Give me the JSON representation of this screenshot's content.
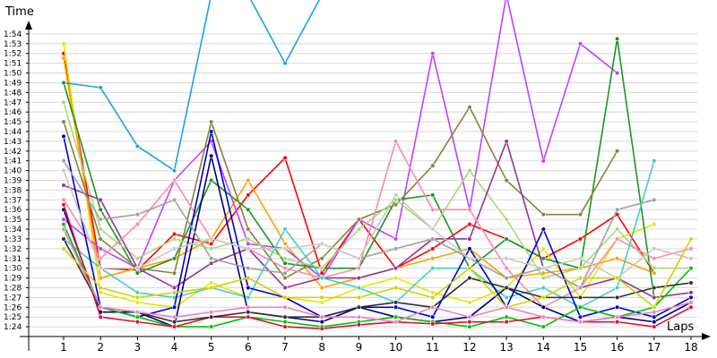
{
  "chart_data": {
    "type": "line",
    "title": "",
    "xlabel": "Laps",
    "ylabel": "Time",
    "x": [
      1,
      2,
      3,
      4,
      5,
      6,
      7,
      8,
      9,
      10,
      11,
      12,
      13,
      14,
      15,
      16,
      17,
      18
    ],
    "ylim": [
      "1:23",
      "1:55"
    ],
    "y_ticks": [
      "1:24",
      "1:25",
      "1:26",
      "1:27",
      "1:28",
      "1:29",
      "1:30",
      "1:31",
      "1:32",
      "1:33",
      "1:34",
      "1:35",
      "1:36",
      "1:37",
      "1:38",
      "1:39",
      "1:40",
      "1:41",
      "1:42",
      "1:43",
      "1:44",
      "1:45",
      "1:46",
      "1:47",
      "1:48",
      "1:49",
      "1:50",
      "1:51",
      "1:52",
      "1:53",
      "1:54"
    ],
    "grid": true,
    "legend": "none",
    "series": [
      {
        "color": "#ff0000",
        "values": [
          "1:52",
          "1:30",
          "1:29.8",
          "1:33.5",
          "1:32.5",
          "1:37.5",
          "1:41.3",
          "1:29.5",
          "1:35",
          "1:30",
          "1:32",
          "1:34.5",
          "1:33",
          "1:31",
          "1:33",
          "1:35.5",
          "1:29.5",
          null
        ]
      },
      {
        "color": "#e6e600",
        "values": [
          "1:53",
          "1:27.5",
          "1:26.5",
          "1:26",
          "1:28.5",
          "1:27",
          "1:27",
          "1:26.5",
          "1:28",
          "1:29",
          "1:27.5",
          "1:26.5",
          "1:28",
          "1:32",
          "1:27",
          "1:33",
          "1:34.5",
          null
        ]
      },
      {
        "color": "#ffa000",
        "values": [
          "1:51.5",
          "1:29",
          "1:30",
          "1:31",
          "1:33",
          "1:39",
          "1:32.5",
          "1:28",
          "1:29",
          "1:30",
          "1:31",
          "1:32",
          "1:29",
          "1:29.5",
          "1:30",
          "1:31",
          "1:29.5",
          null
        ]
      },
      {
        "color": "#1ea0e6",
        "values": [
          "1:49",
          "1:48.5",
          "1:42.5",
          "1:40",
          "1:58",
          "1:58",
          "1:51",
          "1:58",
          null,
          null,
          null,
          null,
          null,
          null,
          null,
          null,
          null,
          null
        ]
      },
      {
        "color": "#c040ff",
        "values": [
          "1:35",
          "1:32",
          "1:30",
          "1:39",
          "1:43",
          "1:32.5",
          "1:32",
          "1:29",
          "1:35",
          "1:33",
          "1:52",
          "1:36",
          "1:58",
          "1:41",
          "1:53",
          "1:50",
          null,
          null
        ]
      },
      {
        "color": "#1a9620",
        "values": [
          "1:49",
          "1:36",
          "1:29.5",
          "1:31",
          "1:39",
          "1:36",
          "1:30.5",
          "1:30",
          "1:30",
          "1:37",
          "1:37.5",
          "1:30",
          "1:33",
          "1:31",
          "1:30",
          "1:53.5",
          "1:27",
          null
        ]
      },
      {
        "color": "#8a8040",
        "values": [
          "1:45",
          "1:33",
          "1:30",
          "1:29.5",
          "1:45",
          "1:34",
          "1:29",
          "1:31",
          "1:35",
          "1:36.5",
          "1:40.5",
          "1:46.5",
          "1:39",
          "1:35.5",
          "1:35.5",
          "1:42",
          null,
          null
        ]
      },
      {
        "color": "#a8d87a",
        "values": [
          "1:47",
          "1:34",
          "1:31",
          "1:33",
          "1:32",
          "1:33",
          "1:31",
          "1:30",
          "1:34",
          "1:37",
          "1:34",
          "1:40",
          "1:35",
          "1:29",
          "1:30",
          "1:34",
          "1:30",
          "1:30"
        ]
      },
      {
        "color": "#993399",
        "values": [
          "1:38.5",
          "1:37",
          "1:30",
          "1:28",
          "1:30.5",
          "1:32",
          "1:28",
          "1:29",
          "1:29",
          "1:30",
          "1:33",
          "1:33",
          "1:43",
          "1:30",
          "1:28",
          "1:29",
          "1:27",
          "1:27.5"
        ]
      },
      {
        "color": "#ff88aa",
        "values": [
          "1:37",
          "1:31",
          "1:34.5",
          "1:39",
          "1:33",
          "1:32",
          "1:30",
          "1:29",
          "1:30",
          "1:43",
          "1:36",
          "1:36",
          "1:30",
          "1:26",
          "1:28",
          "1:33",
          "1:31",
          "1:32"
        ]
      },
      {
        "color": "#40d0c0",
        "values": [
          "1:33",
          "1:30",
          "1:27.5",
          "1:27",
          "1:28",
          "1:27",
          "1:34",
          "1:29",
          "1:28",
          "1:26.5",
          "1:30",
          "1:30",
          "1:27",
          "1:28",
          "1:26",
          "1:28",
          "1:41",
          null
        ]
      },
      {
        "color": "#0000cc",
        "values": [
          "1:43.5",
          "1:26",
          "1:25",
          "1:26",
          "1:44",
          "1:28",
          "1:27",
          "1:25",
          "1:26",
          "1:26",
          "1:25",
          "1:32",
          "1:26",
          "1:34",
          "1:25",
          "1:26",
          "1:25",
          "1:27"
        ]
      },
      {
        "color": "#000080",
        "values": [
          "1:36",
          "1:25.5",
          "1:25.5",
          "1:24",
          "1:41.5",
          "1:25.5",
          "1:25",
          "1:24.5",
          "1:26",
          "1:25",
          "1:24.5",
          "1:25",
          "1:28",
          "1:26",
          "1:24.5",
          "1:25",
          "1:24.5",
          "1:26.5"
        ]
      },
      {
        "color": "#a0a0a0",
        "values": [
          "1:41",
          "1:35",
          "1:35.5",
          "1:37",
          "1:31",
          "1:30",
          "1:29.5",
          "1:32.5",
          "1:31",
          "1:32",
          "1:33",
          "1:31",
          "1:29",
          "1:30",
          "1:28",
          "1:36",
          "1:37",
          null
        ]
      },
      {
        "color": "#00c000",
        "values": [
          "1:34.5",
          "1:26",
          "1:25",
          "1:24",
          "1:24",
          "1:25",
          "1:24.5",
          "1:24",
          "1:24.5",
          "1:25",
          "1:24.5",
          "1:24",
          "1:25",
          "1:24",
          "1:26",
          "1:25",
          "1:26",
          "1:30"
        ]
      },
      {
        "color": "#dd1133",
        "values": [
          "1:36.5",
          "1:25",
          "1:24.5",
          "1:24",
          "1:25",
          "1:25",
          "1:24",
          "1:23.8",
          "1:24.2",
          "1:24.5",
          "1:24.3",
          "1:24.5",
          "1:24.5",
          "1:25",
          "1:24.5",
          "1:24.5",
          "1:24",
          "1:26"
        ]
      },
      {
        "color": "#303030",
        "values": [
          "1:33",
          "1:26",
          "1:25.5",
          "1:24.5",
          "1:25",
          "1:25.5",
          "1:25",
          "1:25",
          "1:26",
          "1:26.5",
          "1:26",
          "1:29",
          "1:28",
          "1:27",
          "1:27",
          "1:27",
          "1:28",
          "1:28.5"
        ]
      },
      {
        "color": "#c8c8c8",
        "values": [
          "1:40",
          "1:30",
          "1:30",
          "1:32",
          "1:33",
          "1:32",
          "1:32",
          "1:32.5",
          "1:31",
          "1:37.5",
          "1:34",
          "1:31",
          "1:31",
          "1:30",
          "1:31",
          "1:29",
          "1:32",
          "1:31"
        ]
      },
      {
        "color": "#d0d000",
        "values": [
          "1:32",
          "1:28",
          "1:27",
          "1:27.5",
          "1:28",
          "1:29",
          "1:27",
          "1:27",
          "1:27",
          "1:28",
          "1:27",
          "1:30",
          "1:26",
          "1:27",
          "1:29",
          "1:29",
          "1:26",
          "1:33"
        ]
      },
      {
        "color": "#f080c0",
        "values": [
          "1:34",
          "1:26",
          "1:25.5",
          "1:25",
          "1:25.5",
          "1:26",
          "1:26",
          "1:25",
          "1:25",
          "1:24.5",
          "1:26",
          "1:25",
          "1:26",
          "1:25",
          "1:24.5",
          "1:25",
          "1:25.5",
          "1:26.5"
        ]
      }
    ]
  }
}
